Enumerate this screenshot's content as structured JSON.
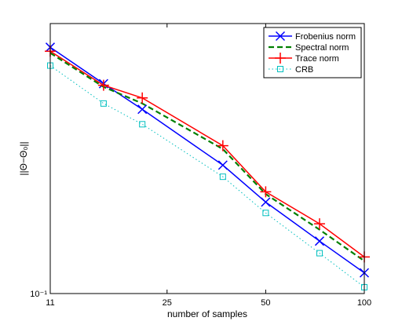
{
  "chart_data": {
    "type": "line",
    "xlabel": "number of samples",
    "ylabel": "||Θ−Θ₀||",
    "x_scale": "log",
    "y_scale": "log",
    "xlim": [
      11,
      100
    ],
    "ylim": [
      0.1,
      1.2
    ],
    "xticks": [
      11,
      25,
      50,
      100
    ],
    "yticks": [
      {
        "value": 0.1,
        "label": "10⁻¹"
      }
    ],
    "legend_position": "top-right",
    "grid": false,
    "series": [
      {
        "name": "Frobenius norm",
        "color": "#0000ff",
        "line": "solid",
        "marker": "x",
        "x": [
          11,
          16,
          21,
          37,
          50,
          73,
          100
        ],
        "y": [
          0.965,
          0.69,
          0.545,
          0.326,
          0.232,
          0.162,
          0.121
        ]
      },
      {
        "name": "Spectral norm",
        "color": "#007f00",
        "line": "dashed",
        "marker": "none",
        "x": [
          11,
          16,
          21,
          37,
          50,
          73,
          100
        ],
        "y": [
          0.915,
          0.67,
          0.575,
          0.378,
          0.25,
          0.18,
          0.135
        ]
      },
      {
        "name": "Trace norm",
        "color": "#ff0000",
        "line": "solid",
        "marker": "plus",
        "x": [
          11,
          16,
          21,
          37,
          50,
          73,
          100
        ],
        "y": [
          0.93,
          0.68,
          0.605,
          0.39,
          0.255,
          0.19,
          0.14
        ]
      },
      {
        "name": "CRB",
        "color": "#00bfbf",
        "line": "dotted",
        "marker": "square",
        "x": [
          11,
          16,
          21,
          37,
          50,
          73,
          100
        ],
        "y": [
          0.815,
          0.575,
          0.475,
          0.293,
          0.21,
          0.145,
          0.106
        ]
      }
    ]
  }
}
